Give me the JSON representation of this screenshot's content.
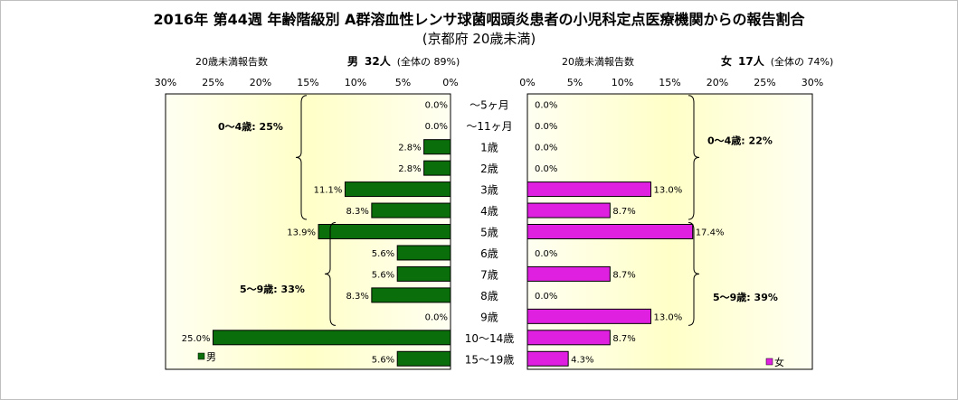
{
  "title": "2016年 第44週 年齢階級別 A群溶血性レンサ球菌咽頭炎患者の小児科定点医療機関からの報告割合",
  "subtitle": "(京都府 20歳未満)",
  "left_header": {
    "label": "20歳未満報告数",
    "sex": "男",
    "count": "32人",
    "share": "(全体の 89%)"
  },
  "right_header": {
    "label": "20歳未満報告数",
    "sex": "女",
    "count": "17人",
    "share": "(全体の 74%)"
  },
  "colors": {
    "male": "#0a6e0a",
    "female": "#e020e0",
    "panel_top": "#fffff2",
    "panel_mid": "#ffffc8"
  },
  "chart_data": {
    "type": "bar",
    "categories": [
      "〜5ヶ月",
      "〜11ヶ月",
      "1歳",
      "2歳",
      "3歳",
      "4歳",
      "5歳",
      "6歳",
      "7歳",
      "8歳",
      "9歳",
      "10〜14歳",
      "15〜19歳"
    ],
    "series": [
      {
        "name": "男",
        "values": [
          0.0,
          0.0,
          2.8,
          2.8,
          11.1,
          8.3,
          13.9,
          5.6,
          5.6,
          8.3,
          0.0,
          25.0,
          5.6
        ],
        "labels": [
          "0.0%",
          "0.0%",
          "2.8%",
          "2.8%",
          "11.1%",
          "8.3%",
          "13.9%",
          "5.6%",
          "5.6%",
          "8.3%",
          "0.0%",
          "25.0%",
          "5.6%"
        ]
      },
      {
        "name": "女",
        "values": [
          0.0,
          0.0,
          0.0,
          0.0,
          13.0,
          8.7,
          17.4,
          0.0,
          8.7,
          0.0,
          13.0,
          8.7,
          4.3
        ],
        "labels": [
          "0.0%",
          "0.0%",
          "0.0%",
          "0.0%",
          "13.0%",
          "8.7%",
          "17.4%",
          "0.0%",
          "8.7%",
          "0.0%",
          "13.0%",
          "8.7%",
          "4.3%"
        ]
      }
    ],
    "xlim": [
      0,
      30
    ],
    "ticks": [
      "30%",
      "25%",
      "20%",
      "15%",
      "10%",
      "5%",
      "0%"
    ],
    "ticks_right": [
      "0%",
      "5%",
      "10%",
      "15%",
      "20%",
      "25%",
      "30%"
    ],
    "annotations": [
      {
        "text": "0〜4歳: 25%",
        "side": "left"
      },
      {
        "text": "5〜9歳: 33%",
        "side": "left"
      },
      {
        "text": "0〜4歳: 22%",
        "side": "right"
      },
      {
        "text": "5〜9歳: 39%",
        "side": "right"
      }
    ],
    "legend": [
      {
        "label": "男"
      },
      {
        "label": "女"
      }
    ]
  }
}
